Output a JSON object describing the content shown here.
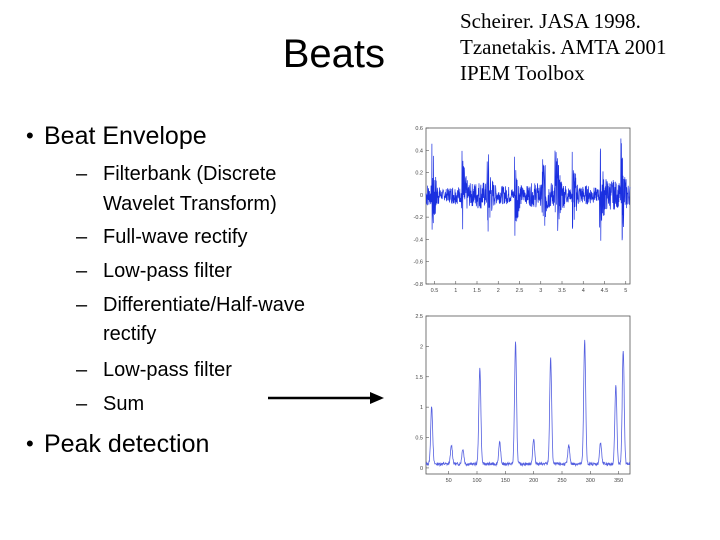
{
  "slide": {
    "title": "Beats",
    "references": [
      "Scheirer. JASA 1998.",
      "Tzanetakis. AMTA 2001",
      "IPEM Toolbox"
    ],
    "bullet1": "Beat Envelope",
    "sub_items": [
      "Filterbank (Discrete",
      "Wavelet Transform)",
      "Full-wave rectify",
      "Low-pass filter",
      "Differentiate/Half-wave",
      "rectify",
      "Low-pass filter",
      "Sum"
    ],
    "bullet2": "Peak detection",
    "bullet_glyph": "•",
    "dash_glyph": "–"
  },
  "chart_data": [
    {
      "type": "line",
      "title": "",
      "xlabel": "",
      "ylabel": "",
      "x_ticks": [
        "0.5",
        "1",
        "1.5",
        "2",
        "2.5",
        "3",
        "3.5",
        "4",
        "4.5",
        "5"
      ],
      "y_ticks": [
        "0.6",
        "0.4",
        "0.2",
        "0",
        "-0.2",
        "-0.4",
        "-0.6",
        "-0.8"
      ],
      "xlim": [
        0.3,
        5.1
      ],
      "ylim": [
        -0.8,
        0.6
      ],
      "color": "#1a2fe0",
      "onsets": [
        0.45,
        1.15,
        1.75,
        2.4,
        3.05,
        3.35,
        3.75,
        4.4,
        4.9
      ]
    },
    {
      "type": "line",
      "title": "",
      "xlabel": "",
      "ylabel": "",
      "x_ticks": [
        "50",
        "100",
        "150",
        "200",
        "250",
        "300",
        "350"
      ],
      "y_ticks": [
        "2.5",
        "2",
        "1.5",
        "1",
        "0.5",
        "0"
      ],
      "xlim": [
        10,
        370
      ],
      "ylim": [
        -0.1,
        2.5
      ],
      "color": "#5560e0",
      "peaks": [
        {
          "x": 20,
          "y": 0.95
        },
        {
          "x": 55,
          "y": 0.3
        },
        {
          "x": 75,
          "y": 0.25
        },
        {
          "x": 105,
          "y": 1.6
        },
        {
          "x": 140,
          "y": 0.35
        },
        {
          "x": 168,
          "y": 2.0
        },
        {
          "x": 200,
          "y": 0.4
        },
        {
          "x": 230,
          "y": 1.75
        },
        {
          "x": 262,
          "y": 0.3
        },
        {
          "x": 290,
          "y": 2.05
        },
        {
          "x": 318,
          "y": 0.35
        },
        {
          "x": 345,
          "y": 1.3
        },
        {
          "x": 358,
          "y": 1.85
        }
      ]
    }
  ]
}
